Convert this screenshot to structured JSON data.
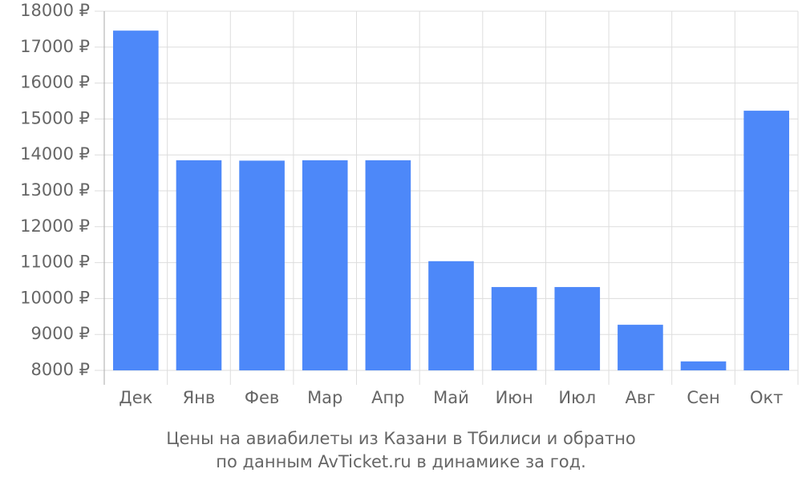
{
  "chart_data": {
    "type": "bar",
    "title": "Цены на авиабилеты из Казани в Тбилиси и обратно",
    "subtitle": "по данным AvTicket.ru в динамике за год.",
    "categories": [
      "Дек",
      "Янв",
      "Фев",
      "Мар",
      "Апр",
      "Май",
      "Июн",
      "Июл",
      "Авг",
      "Сен",
      "Окт"
    ],
    "values": [
      17460,
      13850,
      13840,
      13850,
      13850,
      11040,
      10320,
      10320,
      9270,
      8250,
      15230
    ],
    "color": "#4d88f9",
    "ylim": [
      8000,
      18000
    ],
    "yticks": [
      {
        "value": 8000,
        "label": "8000 ₽"
      },
      {
        "value": 9000,
        "label": "9000 ₽"
      },
      {
        "value": 10000,
        "label": "10000 ₽"
      },
      {
        "value": 11000,
        "label": "11000 ₽"
      },
      {
        "value": 12000,
        "label": "12000 ₽"
      },
      {
        "value": 13000,
        "label": "13000 ₽"
      },
      {
        "value": 14000,
        "label": "14000 ₽"
      },
      {
        "value": 15000,
        "label": "15000 ₽"
      },
      {
        "value": 16000,
        "label": "16000 ₽"
      },
      {
        "value": 17000,
        "label": "17000 ₽"
      },
      {
        "value": 18000,
        "label": "18000 ₽"
      }
    ],
    "grid": true
  }
}
